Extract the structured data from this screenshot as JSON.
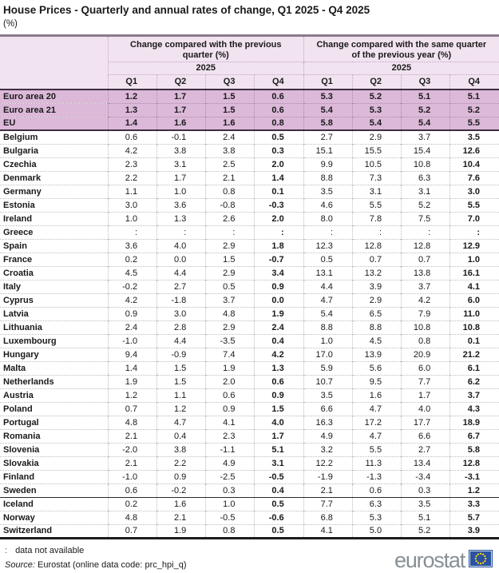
{
  "title": "House Prices -  Quarterly and annual rates of change, Q1 2025 - Q4 2025",
  "subtitle": "(%)",
  "table": {
    "group_headers": [
      "Change compared with the previous quarter (%)",
      "Change compared with the same quarter of the previous year (%)"
    ],
    "year": "2025",
    "quarter_labels": [
      "Q1",
      "Q2",
      "Q3",
      "Q4",
      "Q1",
      "Q2",
      "Q3",
      "Q4"
    ],
    "aggregate_rows": [
      {
        "label": "Euro area 20",
        "values": [
          "1.2",
          "1.7",
          "1.5",
          "0.6",
          "5.3",
          "5.2",
          "5.1",
          "5.1"
        ]
      },
      {
        "label": "Euro area 21",
        "values": [
          "1.3",
          "1.7",
          "1.5",
          "0.6",
          "5.4",
          "5.3",
          "5.2",
          "5.2"
        ]
      },
      {
        "label": "EU",
        "values": [
          "1.4",
          "1.6",
          "1.6",
          "0.8",
          "5.8",
          "5.4",
          "5.4",
          "5.5"
        ]
      }
    ],
    "eu_country_rows": [
      {
        "label": "Belgium",
        "values": [
          "0.6",
          "-0.1",
          "2.4",
          "0.5",
          "2.7",
          "2.9",
          "3.7",
          "3.5"
        ]
      },
      {
        "label": "Bulgaria",
        "values": [
          "4.2",
          "3.8",
          "3.8",
          "0.3",
          "15.1",
          "15.5",
          "15.4",
          "12.6"
        ]
      },
      {
        "label": "Czechia",
        "values": [
          "2.3",
          "3.1",
          "2.5",
          "2.0",
          "9.9",
          "10.5",
          "10.8",
          "10.4"
        ]
      },
      {
        "label": "Denmark",
        "values": [
          "2.2",
          "1.7",
          "2.1",
          "1.4",
          "8.8",
          "7.3",
          "6.3",
          "7.6"
        ]
      },
      {
        "label": "Germany",
        "values": [
          "1.1",
          "1.0",
          "0.8",
          "0.1",
          "3.5",
          "3.1",
          "3.1",
          "3.0"
        ]
      },
      {
        "label": "Estonia",
        "values": [
          "3.0",
          "3.6",
          "-0.8",
          "-0.3",
          "4.6",
          "5.5",
          "5.2",
          "5.5"
        ]
      },
      {
        "label": "Ireland",
        "values": [
          "1.0",
          "1.3",
          "2.6",
          "2.0",
          "8.0",
          "7.8",
          "7.5",
          "7.0"
        ]
      },
      {
        "label": "Greece",
        "values": [
          ":",
          ":",
          ":",
          ":",
          ":",
          ":",
          ":",
          ":"
        ]
      },
      {
        "label": "Spain",
        "values": [
          "3.6",
          "4.0",
          "2.9",
          "1.8",
          "12.3",
          "12.8",
          "12.8",
          "12.9"
        ]
      },
      {
        "label": "France",
        "values": [
          "0.2",
          "0.0",
          "1.5",
          "-0.7",
          "0.5",
          "0.7",
          "0.7",
          "1.0"
        ]
      },
      {
        "label": "Croatia",
        "values": [
          "4.5",
          "4.4",
          "2.9",
          "3.4",
          "13.1",
          "13.2",
          "13.8",
          "16.1"
        ]
      },
      {
        "label": "Italy",
        "values": [
          "-0.2",
          "2.7",
          "0.5",
          "0.9",
          "4.4",
          "3.9",
          "3.7",
          "4.1"
        ]
      },
      {
        "label": "Cyprus",
        "values": [
          "4.2",
          "-1.8",
          "3.7",
          "0.0",
          "4.7",
          "2.9",
          "4.2",
          "6.0"
        ]
      },
      {
        "label": "Latvia",
        "values": [
          "0.9",
          "3.0",
          "4.8",
          "1.9",
          "5.4",
          "6.5",
          "7.9",
          "11.0"
        ]
      },
      {
        "label": "Lithuania",
        "values": [
          "2.4",
          "2.8",
          "2.9",
          "2.4",
          "8.8",
          "8.8",
          "10.8",
          "10.8"
        ]
      },
      {
        "label": "Luxembourg",
        "values": [
          "-1.0",
          "4.4",
          "-3.5",
          "0.4",
          "1.0",
          "4.5",
          "0.8",
          "0.1"
        ]
      },
      {
        "label": "Hungary",
        "values": [
          "9.4",
          "-0.9",
          "7.4",
          "4.2",
          "17.0",
          "13.9",
          "20.9",
          "21.2"
        ]
      },
      {
        "label": "Malta",
        "values": [
          "1.4",
          "1.5",
          "1.9",
          "1.3",
          "5.9",
          "5.6",
          "6.0",
          "6.1"
        ]
      },
      {
        "label": "Netherlands",
        "values": [
          "1.9",
          "1.5",
          "2.0",
          "0.6",
          "10.7",
          "9.5",
          "7.7",
          "6.2"
        ]
      },
      {
        "label": "Austria",
        "values": [
          "1.2",
          "1.1",
          "0.6",
          "0.9",
          "3.5",
          "1.6",
          "1.7",
          "3.7"
        ]
      },
      {
        "label": "Poland",
        "values": [
          "0.7",
          "1.2",
          "0.9",
          "1.5",
          "6.6",
          "4.7",
          "4.0",
          "4.3"
        ]
      },
      {
        "label": "Portugal",
        "values": [
          "4.8",
          "4.7",
          "4.1",
          "4.0",
          "16.3",
          "17.2",
          "17.7",
          "18.9"
        ]
      },
      {
        "label": "Romania",
        "values": [
          "2.1",
          "0.4",
          "2.3",
          "1.7",
          "4.9",
          "4.7",
          "6.6",
          "6.7"
        ]
      },
      {
        "label": "Slovenia",
        "values": [
          "-2.0",
          "3.8",
          "-1.1",
          "5.1",
          "3.2",
          "5.5",
          "2.7",
          "5.8"
        ]
      },
      {
        "label": "Slovakia",
        "values": [
          "2.1",
          "2.2",
          "4.9",
          "3.1",
          "12.2",
          "11.3",
          "13.4",
          "12.8"
        ]
      },
      {
        "label": "Finland",
        "values": [
          "-1.0",
          "0.9",
          "-2.5",
          "-0.5",
          "-1.9",
          "-1.3",
          "-3.4",
          "-3.1"
        ]
      },
      {
        "label": "Sweden",
        "values": [
          "0.6",
          "-0.2",
          "0.3",
          "0.4",
          "2.1",
          "0.6",
          "0.3",
          "1.2"
        ]
      }
    ],
    "efta_country_rows": [
      {
        "label": "Iceland",
        "values": [
          "0.2",
          "1.6",
          "1.0",
          "0.5",
          "7.7",
          "6.3",
          "3.5",
          "3.3"
        ]
      },
      {
        "label": "Norway",
        "values": [
          "4.8",
          "2.1",
          "-0.5",
          "-0.6",
          "6.8",
          "5.3",
          "5.1",
          "5.7"
        ]
      },
      {
        "label": "Switzerland",
        "values": [
          "0.7",
          "1.9",
          "0.8",
          "0.5",
          "4.1",
          "5.0",
          "5.2",
          "3.9"
        ]
      }
    ]
  },
  "footnote": {
    "symbol": ":",
    "text": "data not available"
  },
  "source": {
    "prefix": "Source:",
    "text": "Eurostat (online data code: prc_hpi_q)"
  },
  "logo": {
    "text": "eurostat"
  },
  "colors": {
    "header_bg": "#f1e3f0",
    "aggregate_row_bg": "#dcb9d9",
    "dark_rule": "#3f2e42",
    "eu_flag_blue": "#2a52a0",
    "eu_star_yellow": "#ffd617",
    "logo_gray": "#879094"
  }
}
